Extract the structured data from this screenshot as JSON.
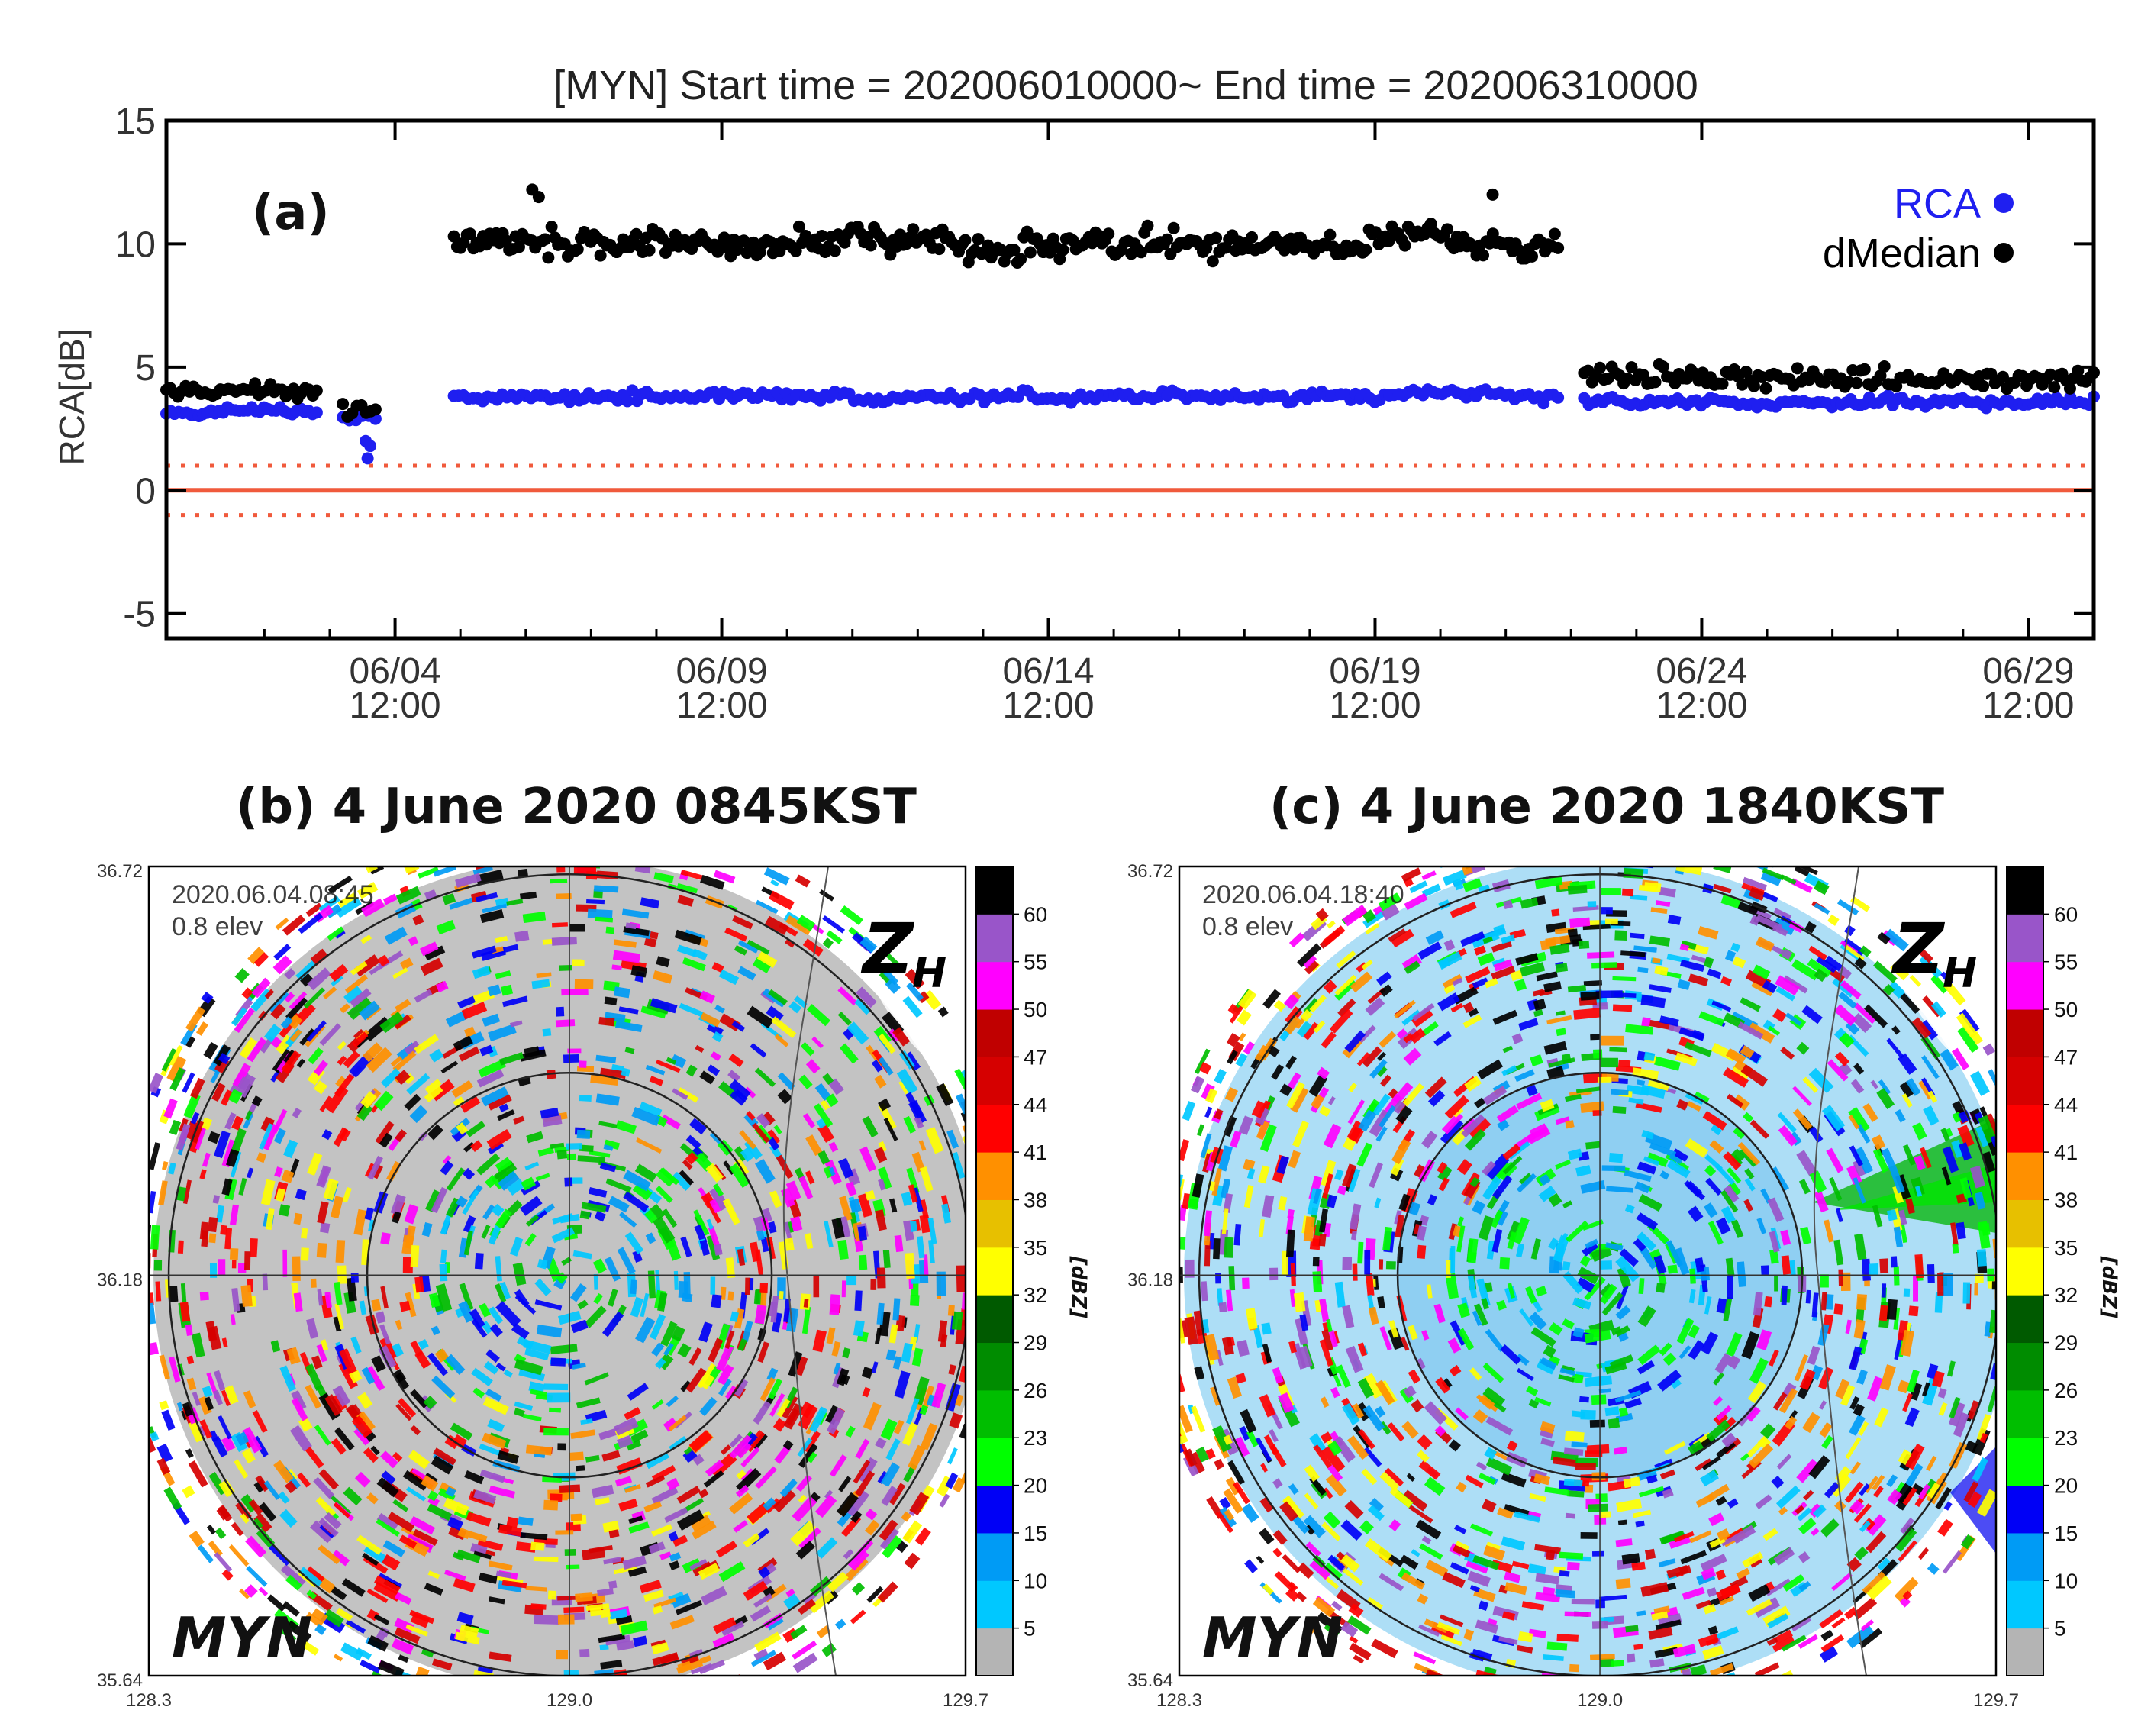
{
  "chart_data": [
    {
      "type": "scatter",
      "panel_label": "(a)",
      "title": "[MYN] Start time = 202006010000~ End time = 202006310000",
      "xlabel": "",
      "ylabel": "RCA[dB]",
      "xlim_days": [
        1.0,
        30.5
      ],
      "ylim": [
        -6,
        15
      ],
      "yticks": [
        15,
        10,
        5,
        0,
        -5
      ],
      "ytick_labels": [
        "15",
        "10",
        "5",
        "0",
        "-5"
      ],
      "xticks_days": [
        4.5,
        9.5,
        14.5,
        19.5,
        24.5,
        29.5
      ],
      "xtick_labels": [
        [
          "06/04",
          "12:00"
        ],
        [
          "06/09",
          "12:00"
        ],
        [
          "06/14",
          "12:00"
        ],
        [
          "06/19",
          "12:00"
        ],
        [
          "06/24",
          "12:00"
        ],
        [
          "06/29",
          "12:00"
        ]
      ],
      "reference_lines": [
        {
          "y": 0,
          "style": "solid",
          "color": "#f05a3c"
        },
        {
          "y": 1,
          "style": "dotted",
          "color": "#f05a3c"
        },
        {
          "y": -1,
          "style": "dotted",
          "color": "#f05a3c"
        }
      ],
      "legend_position": "top-right",
      "series": [
        {
          "name": "RCA",
          "color": "#1f1ff0",
          "segments": [
            {
              "x_start": 1.0,
              "x_end": 3.3,
              "mean": 3.2,
              "spread": 0.25,
              "n": 38
            },
            {
              "x_start": 3.7,
              "x_end": 4.2,
              "mean": 3.0,
              "spread": 0.4,
              "n": 6
            },
            {
              "x_start": 5.4,
              "x_end": 22.3,
              "mean": 3.8,
              "spread": 0.3,
              "n": 230
            },
            {
              "x_start": 22.7,
              "x_end": 30.5,
              "mean": 3.6,
              "spread": 0.3,
              "n": 110
            }
          ],
          "outliers": [
            [
              4.05,
              2.0
            ],
            [
              4.08,
              1.3
            ],
            [
              4.12,
              1.8
            ]
          ]
        },
        {
          "name": "dMedian",
          "color": "#000000",
          "segments": [
            {
              "x_start": 1.0,
              "x_end": 3.3,
              "mean": 4.0,
              "spread": 0.45,
              "n": 40
            },
            {
              "x_start": 3.7,
              "x_end": 4.2,
              "mean": 3.4,
              "spread": 0.6,
              "n": 8
            },
            {
              "x_start": 5.4,
              "x_end": 22.3,
              "mean": 10.0,
              "spread": 0.85,
              "n": 340
            },
            {
              "x_start": 22.7,
              "x_end": 30.5,
              "mean": 4.6,
              "spread": 0.55,
              "n": 130
            }
          ],
          "outliers": [
            [
              6.6,
              12.2
            ],
            [
              6.7,
              11.9
            ],
            [
              21.3,
              12.0
            ]
          ]
        }
      ]
    },
    {
      "type": "heatmap",
      "panel_label": "(b)",
      "title": "(b) 4 June 2020 0845KST",
      "timestamp_overlay": "2020.06.04.08:45",
      "elevation_overlay": "0.8 elev",
      "variable_label": "Z",
      "variable_subscript": "H",
      "site_label": "MYN",
      "colorbar_unit": "[dBZ]",
      "colorbar_ticks": [
        "5",
        "10",
        "15",
        "20",
        "23",
        "26",
        "29",
        "32",
        "35",
        "38",
        "41",
        "44",
        "47",
        "50",
        "55",
        "60"
      ],
      "colorbar_colors": [
        "#b4b4b4",
        "#00c8ff",
        "#009bf5",
        "#0000f6",
        "#00ff00",
        "#00be00",
        "#008c00",
        "#005a00",
        "#ffff00",
        "#e7c000",
        "#ff9000",
        "#ff0000",
        "#d60000",
        "#c00000",
        "#ff00ff",
        "#9955c9",
        "#000000"
      ],
      "x_ticks": [
        "128.3",
        "129.0",
        "129.7"
      ],
      "y_ticks": [
        "36.72",
        "36.18",
        "35.64"
      ],
      "longitude_range": [
        128.3,
        129.7
      ],
      "latitude_range": [
        35.64,
        36.72
      ]
    },
    {
      "type": "heatmap",
      "panel_label": "(c)",
      "title": "(c) 4 June 2020 1840KST",
      "timestamp_overlay": "2020.06.04.18:40",
      "elevation_overlay": "0.8 elev",
      "variable_label": "Z",
      "variable_subscript": "H",
      "site_label": "MYN",
      "colorbar_unit": "[dBZ]",
      "colorbar_ticks": [
        "5",
        "10",
        "15",
        "20",
        "23",
        "26",
        "29",
        "32",
        "35",
        "38",
        "41",
        "44",
        "47",
        "50",
        "55",
        "60"
      ],
      "colorbar_colors": [
        "#b4b4b4",
        "#00c8ff",
        "#009bf5",
        "#0000f6",
        "#00ff00",
        "#00be00",
        "#008c00",
        "#005a00",
        "#ffff00",
        "#e7c000",
        "#ff9000",
        "#ff0000",
        "#d60000",
        "#c00000",
        "#ff00ff",
        "#9955c9",
        "#000000"
      ],
      "x_ticks": [
        "128.3",
        "129.0",
        "129.7"
      ],
      "y_ticks": [
        "36.72",
        "36.18",
        "35.64"
      ],
      "longitude_range": [
        128.3,
        129.7
      ],
      "latitude_range": [
        35.64,
        36.72
      ]
    }
  ]
}
